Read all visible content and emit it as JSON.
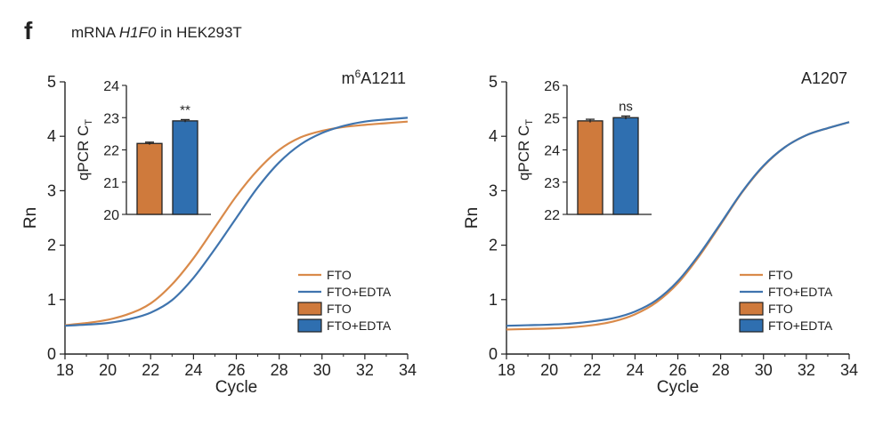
{
  "panel_letter": "f",
  "heading": {
    "prefix": "mRNA ",
    "gene": "H1F0",
    "suffix": " in HEK293T"
  },
  "colors": {
    "fto": "#D98A4A",
    "fto_edta": "#3F74AE",
    "fto_bar": "#CF7A3C",
    "fto_edta_bar": "#2F6FB0"
  },
  "chart_data": [
    {
      "type": "line",
      "label": {
        "base": "m",
        "sup": "6",
        "rest": "A1211"
      },
      "xlabel": "Cycle",
      "ylabel": "Rn",
      "xlim": [
        18,
        34
      ],
      "ylim": [
        0,
        5
      ],
      "xticks": [
        18,
        20,
        22,
        24,
        26,
        28,
        30,
        32,
        34
      ],
      "yticks": [
        0,
        1,
        2,
        3,
        4,
        5
      ],
      "grid": false,
      "series": [
        {
          "name": "FTO",
          "x": [
            18,
            19,
            20,
            21,
            22,
            23,
            24,
            25,
            26,
            27,
            28,
            29,
            30,
            31,
            32,
            33,
            34
          ],
          "y": [
            0.53,
            0.57,
            0.63,
            0.74,
            0.93,
            1.28,
            1.76,
            2.33,
            2.9,
            3.38,
            3.75,
            3.98,
            4.1,
            4.17,
            4.21,
            4.24,
            4.27
          ]
        },
        {
          "name": "FTO+EDTA",
          "x": [
            18,
            19,
            20,
            21,
            22,
            23,
            24,
            25,
            26,
            27,
            28,
            29,
            30,
            31,
            32,
            33,
            34
          ],
          "y": [
            0.52,
            0.54,
            0.57,
            0.64,
            0.76,
            0.99,
            1.4,
            1.93,
            2.5,
            3.06,
            3.52,
            3.85,
            4.06,
            4.19,
            4.27,
            4.31,
            4.34
          ]
        }
      ],
      "legend": {
        "position": "bottom-right",
        "entries": [
          {
            "label": "FTO",
            "kind": "line",
            "series": "FTO"
          },
          {
            "label": "FTO+EDTA",
            "kind": "line",
            "series": "FTO+EDTA"
          },
          {
            "label": "FTO",
            "kind": "bar",
            "series": "FTO"
          },
          {
            "label": "FTO+EDTA",
            "kind": "bar",
            "series": "FTO+EDTA"
          }
        ]
      },
      "inset": {
        "type": "bar",
        "ylabel": "qPCR C",
        "ylabel_sub": "T",
        "ylim": [
          20,
          24
        ],
        "yticks": [
          20,
          21,
          22,
          23,
          24
        ],
        "categories": [
          "FTO",
          "FTO+EDTA"
        ],
        "values": [
          22.2,
          22.9
        ],
        "errors": [
          0.04,
          0.04
        ],
        "significance": "**"
      }
    },
    {
      "type": "line",
      "label": {
        "base": "A1207",
        "sup": "",
        "rest": ""
      },
      "xlabel": "Cycle",
      "ylabel": "Rn",
      "xlim": [
        18,
        34
      ],
      "ylim": [
        0,
        5
      ],
      "xticks": [
        18,
        20,
        22,
        24,
        26,
        28,
        30,
        32,
        34
      ],
      "yticks": [
        0,
        1,
        2,
        3,
        4,
        5
      ],
      "grid": false,
      "series": [
        {
          "name": "FTO",
          "x": [
            18,
            19,
            20,
            21,
            22,
            23,
            24,
            25,
            26,
            27,
            28,
            29,
            30,
            31,
            32,
            33,
            34
          ],
          "y": [
            0.45,
            0.46,
            0.47,
            0.49,
            0.53,
            0.6,
            0.73,
            0.95,
            1.3,
            1.8,
            2.38,
            2.97,
            3.45,
            3.8,
            4.02,
            4.15,
            4.26
          ]
        },
        {
          "name": "FTO+EDTA",
          "x": [
            18,
            19,
            20,
            21,
            22,
            23,
            24,
            25,
            26,
            27,
            28,
            29,
            30,
            31,
            32,
            33,
            34
          ],
          "y": [
            0.52,
            0.53,
            0.54,
            0.56,
            0.6,
            0.66,
            0.78,
            0.99,
            1.34,
            1.83,
            2.4,
            2.98,
            3.46,
            3.8,
            4.02,
            4.15,
            4.26
          ]
        }
      ],
      "legend": {
        "position": "bottom-right",
        "entries": [
          {
            "label": "FTO",
            "kind": "line",
            "series": "FTO"
          },
          {
            "label": "FTO+EDTA",
            "kind": "line",
            "series": "FTO+EDTA"
          },
          {
            "label": "FTO",
            "kind": "bar",
            "series": "FTO"
          },
          {
            "label": "FTO+EDTA",
            "kind": "bar",
            "series": "FTO+EDTA"
          }
        ]
      },
      "inset": {
        "type": "bar",
        "ylabel": "qPCR C",
        "ylabel_sub": "T",
        "ylim": [
          22,
          26
        ],
        "yticks": [
          22,
          23,
          24,
          25,
          26
        ],
        "categories": [
          "FTO",
          "FTO+EDTA"
        ],
        "values": [
          24.9,
          25.0
        ],
        "errors": [
          0.05,
          0.05
        ],
        "significance": "ns"
      }
    }
  ]
}
